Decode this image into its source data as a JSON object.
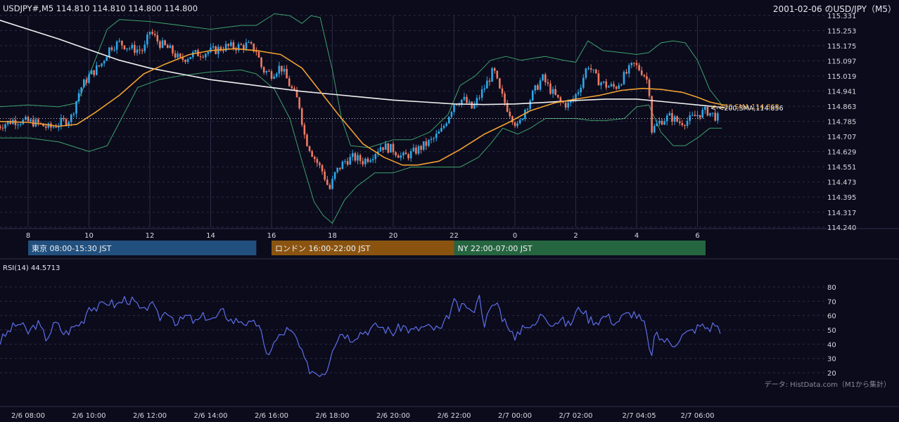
{
  "header": {
    "symbol_info": "USDJPY#,M5 114.810 114.810 114.800 114.800",
    "chart_title": "2001-02-06 のUSD/JPY（M5）"
  },
  "colors": {
    "background": "#0b0b1c",
    "grid": "#2a2c44",
    "candle_up": "#2ea8e8",
    "candle_down": "#f07a60",
    "sma20": "#f0a030",
    "sma200": "#f0f0f0",
    "bollinger": "#3fa06a",
    "rsi": "#5e6ee8",
    "session_tokyo": "#22507e",
    "session_london": "#8a5410",
    "session_ny": "#25653f"
  },
  "sessions": [
    {
      "label": "東京 08:00-15:30 JST",
      "start_hour": 8,
      "end_hour": 15.5
    },
    {
      "label": "ロンドン 16:00-22:00 JST",
      "start_hour": 16,
      "end_hour": 22
    },
    {
      "label": "NY 22:00-07:00 JST",
      "start_hour": 22,
      "end_hour": 31
    }
  ],
  "indicator_labels": {
    "sma20_tag": "<-<20,SMA,114.868",
    "sma200_tag": "<-<200,SMA,114.856"
  },
  "rsi": {
    "title": "RSI(14) 44.5713",
    "ticks": [
      20,
      30,
      40,
      50,
      60,
      70,
      80
    ]
  },
  "source_note": "データ: HistData.com（M1から集計）",
  "chart_data": {
    "type": "candlestick",
    "x_range_hours": [
      7.0,
      31.5
    ],
    "price_ylim": [
      114.24,
      115.331
    ],
    "price_ticks": [
      "115.331",
      "115.253",
      "115.175",
      "115.097",
      "115.019",
      "114.941",
      "114.863",
      "114.785",
      "114.707",
      "114.629",
      "114.551",
      "114.473",
      "114.395",
      "114.317",
      "114.240"
    ],
    "price_tick_values": [
      115.331,
      115.253,
      115.175,
      115.097,
      115.019,
      114.941,
      114.863,
      114.785,
      114.707,
      114.629,
      114.551,
      114.473,
      114.395,
      114.317,
      114.24
    ],
    "hour_ticks": [
      8,
      10,
      12,
      14,
      16,
      18,
      20,
      22,
      24,
      26,
      28,
      30
    ],
    "hour_tick_labels": [
      "8",
      "10",
      "12",
      "14",
      "16",
      "18",
      "20",
      "22",
      "0",
      "2",
      "4",
      "6"
    ],
    "bottom_ticks": [
      {
        "h": 8,
        "label": "2/6 08:00"
      },
      {
        "h": 10,
        "label": "2/6 10:00"
      },
      {
        "h": 12,
        "label": "2/6 12:00"
      },
      {
        "h": 14,
        "label": "2/6 14:00"
      },
      {
        "h": 16,
        "label": "2/6 16:00"
      },
      {
        "h": 18,
        "label": "2/6 18:00"
      },
      {
        "h": 20,
        "label": "2/6 20:00"
      },
      {
        "h": 22,
        "label": "2/6 22:00"
      },
      {
        "h": 24,
        "label": "2/7 00:00"
      },
      {
        "h": 26,
        "label": "2/7 02:00"
      },
      {
        "h": 28.0833,
        "label": "2/7 04:05"
      },
      {
        "h": 30,
        "label": "2/7 06:00"
      }
    ],
    "last_price": 114.8,
    "close_path": [
      [
        7.0,
        114.76
      ],
      [
        7.5,
        114.79
      ],
      [
        8.2,
        114.78
      ],
      [
        8.7,
        114.75
      ],
      [
        9.1,
        114.78
      ],
      [
        9.4,
        114.8
      ],
      [
        9.7,
        114.95
      ],
      [
        10.0,
        115.02
      ],
      [
        10.4,
        115.08
      ],
      [
        10.7,
        115.17
      ],
      [
        11.0,
        115.19
      ],
      [
        11.4,
        115.16
      ],
      [
        11.8,
        115.15
      ],
      [
        12.0,
        115.25
      ],
      [
        12.3,
        115.19
      ],
      [
        12.7,
        115.15
      ],
      [
        13.0,
        115.1
      ],
      [
        13.4,
        115.13
      ],
      [
        13.8,
        115.14
      ],
      [
        14.1,
        115.15
      ],
      [
        14.5,
        115.17
      ],
      [
        14.9,
        115.17
      ],
      [
        15.2,
        115.18
      ],
      [
        15.5,
        115.15
      ],
      [
        15.7,
        115.05
      ],
      [
        16.0,
        115.03
      ],
      [
        16.3,
        115.07
      ],
      [
        16.6,
        114.97
      ],
      [
        16.9,
        114.88
      ],
      [
        17.1,
        114.7
      ],
      [
        17.4,
        114.6
      ],
      [
        17.7,
        114.52
      ],
      [
        17.9,
        114.43
      ],
      [
        18.1,
        114.52
      ],
      [
        18.4,
        114.58
      ],
      [
        18.7,
        114.6
      ],
      [
        19.0,
        114.58
      ],
      [
        19.3,
        114.61
      ],
      [
        19.6,
        114.66
      ],
      [
        20.0,
        114.64
      ],
      [
        20.3,
        114.6
      ],
      [
        20.6,
        114.62
      ],
      [
        21.0,
        114.66
      ],
      [
        21.3,
        114.69
      ],
      [
        21.6,
        114.74
      ],
      [
        22.0,
        114.88
      ],
      [
        22.3,
        114.9
      ],
      [
        22.6,
        114.85
      ],
      [
        23.0,
        114.96
      ],
      [
        23.3,
        115.05
      ],
      [
        23.5,
        114.94
      ],
      [
        23.7,
        114.87
      ],
      [
        23.9,
        114.81
      ],
      [
        24.1,
        114.75
      ],
      [
        24.3,
        114.84
      ],
      [
        24.6,
        114.93
      ],
      [
        24.9,
        115.01
      ],
      [
        25.2,
        114.94
      ],
      [
        25.5,
        114.88
      ],
      [
        25.8,
        114.87
      ],
      [
        26.1,
        114.95
      ],
      [
        26.4,
        115.08
      ],
      [
        26.7,
        115.0
      ],
      [
        27.0,
        114.97
      ],
      [
        27.3,
        114.96
      ],
      [
        27.6,
        115.02
      ],
      [
        27.9,
        115.08
      ],
      [
        28.2,
        115.04
      ],
      [
        28.4,
        114.98
      ],
      [
        28.5,
        114.74
      ],
      [
        28.8,
        114.79
      ],
      [
        29.1,
        114.81
      ],
      [
        29.4,
        114.78
      ],
      [
        29.7,
        114.79
      ],
      [
        30.0,
        114.82
      ],
      [
        30.3,
        114.84
      ],
      [
        30.7,
        114.8
      ]
    ],
    "sma20_path": [
      [
        7.0,
        114.785
      ],
      [
        8.0,
        114.78
      ],
      [
        9.0,
        114.76
      ],
      [
        9.6,
        114.77
      ],
      [
        10.2,
        114.83
      ],
      [
        11.0,
        114.92
      ],
      [
        11.8,
        115.03
      ],
      [
        12.5,
        115.08
      ],
      [
        13.3,
        115.13
      ],
      [
        14.0,
        115.15
      ],
      [
        14.8,
        115.16
      ],
      [
        15.5,
        115.15
      ],
      [
        16.3,
        115.13
      ],
      [
        17.0,
        115.06
      ],
      [
        17.5,
        114.96
      ],
      [
        18.2,
        114.82
      ],
      [
        19.0,
        114.67
      ],
      [
        19.7,
        114.6
      ],
      [
        20.3,
        114.56
      ],
      [
        20.8,
        114.56
      ],
      [
        21.5,
        114.58
      ],
      [
        22.2,
        114.64
      ],
      [
        23.0,
        114.72
      ],
      [
        23.8,
        114.78
      ],
      [
        24.5,
        114.84
      ],
      [
        25.3,
        114.88
      ],
      [
        26.0,
        114.9
      ],
      [
        26.8,
        114.92
      ],
      [
        27.5,
        114.945
      ],
      [
        28.2,
        114.955
      ],
      [
        28.8,
        114.95
      ],
      [
        29.5,
        114.935
      ],
      [
        30.0,
        114.91
      ],
      [
        30.4,
        114.885
      ],
      [
        30.9,
        114.868
      ]
    ],
    "sma200_path": [
      [
        7.0,
        115.31
      ],
      [
        8.0,
        115.26
      ],
      [
        9.0,
        115.21
      ],
      [
        10.0,
        115.155
      ],
      [
        11.0,
        115.1
      ],
      [
        12.0,
        115.06
      ],
      [
        13.0,
        115.03
      ],
      [
        14.0,
        115.0
      ],
      [
        15.0,
        114.98
      ],
      [
        16.0,
        114.96
      ],
      [
        17.0,
        114.94
      ],
      [
        18.0,
        114.925
      ],
      [
        19.0,
        114.91
      ],
      [
        20.0,
        114.895
      ],
      [
        21.0,
        114.885
      ],
      [
        22.0,
        114.875
      ],
      [
        23.0,
        114.872
      ],
      [
        24.0,
        114.875
      ],
      [
        25.0,
        114.883
      ],
      [
        26.0,
        114.893
      ],
      [
        27.0,
        114.9
      ],
      [
        28.0,
        114.9
      ],
      [
        29.0,
        114.885
      ],
      [
        30.0,
        114.87
      ],
      [
        30.9,
        114.856
      ]
    ],
    "bollinger_upper": [
      [
        7.0,
        114.86
      ],
      [
        8.0,
        114.87
      ],
      [
        9.0,
        114.86
      ],
      [
        9.6,
        114.88
      ],
      [
        10.0,
        115.02
      ],
      [
        10.6,
        115.26
      ],
      [
        11.0,
        115.31
      ],
      [
        12.0,
        115.3
      ],
      [
        13.0,
        115.28
      ],
      [
        14.0,
        115.26
      ],
      [
        15.0,
        115.28
      ],
      [
        15.5,
        115.28
      ],
      [
        16.1,
        115.34
      ],
      [
        16.6,
        115.33
      ],
      [
        17.0,
        115.29
      ],
      [
        17.3,
        115.33
      ],
      [
        17.6,
        115.32
      ],
      [
        18.0,
        115.05
      ],
      [
        18.3,
        114.8
      ],
      [
        18.6,
        114.66
      ],
      [
        19.2,
        114.65
      ],
      [
        20.0,
        114.69
      ],
      [
        20.6,
        114.69
      ],
      [
        21.2,
        114.73
      ],
      [
        21.8,
        114.82
      ],
      [
        22.2,
        114.97
      ],
      [
        22.7,
        115.02
      ],
      [
        23.2,
        115.1
      ],
      [
        23.7,
        115.12
      ],
      [
        24.2,
        115.1
      ],
      [
        25.0,
        115.12
      ],
      [
        25.6,
        115.1
      ],
      [
        26.0,
        115.09
      ],
      [
        26.4,
        115.2
      ],
      [
        26.9,
        115.15
      ],
      [
        27.5,
        115.14
      ],
      [
        28.0,
        115.13
      ],
      [
        28.4,
        115.14
      ],
      [
        28.8,
        115.19
      ],
      [
        29.2,
        115.2
      ],
      [
        29.6,
        115.19
      ],
      [
        30.0,
        115.1
      ],
      [
        30.4,
        114.95
      ],
      [
        30.8,
        114.87
      ]
    ],
    "bollinger_lower": [
      [
        7.0,
        114.7
      ],
      [
        8.0,
        114.7
      ],
      [
        9.0,
        114.68
      ],
      [
        9.6,
        114.65
      ],
      [
        10.0,
        114.63
      ],
      [
        10.6,
        114.66
      ],
      [
        11.0,
        114.78
      ],
      [
        11.6,
        114.96
      ],
      [
        12.3,
        115.0
      ],
      [
        13.0,
        115.02
      ],
      [
        14.0,
        115.04
      ],
      [
        15.0,
        115.05
      ],
      [
        15.5,
        115.03
      ],
      [
        16.1,
        114.95
      ],
      [
        16.6,
        114.8
      ],
      [
        17.0,
        114.58
      ],
      [
        17.4,
        114.37
      ],
      [
        17.7,
        114.3
      ],
      [
        18.0,
        114.26
      ],
      [
        18.4,
        114.38
      ],
      [
        18.8,
        114.45
      ],
      [
        19.4,
        114.52
      ],
      [
        20.0,
        114.52
      ],
      [
        20.6,
        114.55
      ],
      [
        21.2,
        114.55
      ],
      [
        21.8,
        114.55
      ],
      [
        22.2,
        114.55
      ],
      [
        22.8,
        114.6
      ],
      [
        23.2,
        114.67
      ],
      [
        23.6,
        114.75
      ],
      [
        24.1,
        114.72
      ],
      [
        24.5,
        114.75
      ],
      [
        25.0,
        114.8
      ],
      [
        25.5,
        114.8
      ],
      [
        26.0,
        114.8
      ],
      [
        26.5,
        114.79
      ],
      [
        27.0,
        114.79
      ],
      [
        27.6,
        114.8
      ],
      [
        28.0,
        114.86
      ],
      [
        28.4,
        114.87
      ],
      [
        28.8,
        114.73
      ],
      [
        29.2,
        114.66
      ],
      [
        29.6,
        114.66
      ],
      [
        30.0,
        114.7
      ],
      [
        30.4,
        114.75
      ],
      [
        30.8,
        114.75
      ]
    ],
    "rsi_ylim": [
      15,
      82
    ],
    "rsi_path": [
      [
        7.0,
        40
      ],
      [
        7.4,
        50
      ],
      [
        7.7,
        55
      ],
      [
        8.0,
        48
      ],
      [
        8.3,
        55
      ],
      [
        8.6,
        44
      ],
      [
        8.9,
        55
      ],
      [
        9.2,
        47
      ],
      [
        9.5,
        52
      ],
      [
        9.8,
        56
      ],
      [
        10.0,
        67
      ],
      [
        10.3,
        65
      ],
      [
        10.6,
        70
      ],
      [
        10.9,
        67
      ],
      [
        11.2,
        72
      ],
      [
        11.5,
        69
      ],
      [
        11.8,
        61
      ],
      [
        12.0,
        70
      ],
      [
        12.3,
        58
      ],
      [
        12.6,
        64
      ],
      [
        12.9,
        54
      ],
      [
        13.2,
        60
      ],
      [
        13.5,
        55
      ],
      [
        13.8,
        60
      ],
      [
        14.1,
        57
      ],
      [
        14.4,
        63
      ],
      [
        14.7,
        56
      ],
      [
        15.0,
        57
      ],
      [
        15.3,
        53
      ],
      [
        15.6,
        55
      ],
      [
        15.8,
        31
      ],
      [
        16.0,
        38
      ],
      [
        16.2,
        44
      ],
      [
        16.5,
        50
      ],
      [
        16.8,
        45
      ],
      [
        17.0,
        33
      ],
      [
        17.2,
        23
      ],
      [
        17.5,
        20
      ],
      [
        17.8,
        21
      ],
      [
        18.0,
        38
      ],
      [
        18.3,
        49
      ],
      [
        18.6,
        44
      ],
      [
        18.9,
        48
      ],
      [
        19.2,
        50
      ],
      [
        19.5,
        53
      ],
      [
        19.8,
        50
      ],
      [
        20.0,
        48
      ],
      [
        20.3,
        53
      ],
      [
        20.6,
        49
      ],
      [
        21.0,
        52
      ],
      [
        21.3,
        51
      ],
      [
        21.6,
        50
      ],
      [
        22.0,
        69
      ],
      [
        22.2,
        64
      ],
      [
        22.4,
        68
      ],
      [
        22.6,
        60
      ],
      [
        22.8,
        76
      ],
      [
        23.0,
        55
      ],
      [
        23.2,
        64
      ],
      [
        23.4,
        70
      ],
      [
        23.6,
        58
      ],
      [
        23.8,
        54
      ],
      [
        24.0,
        42
      ],
      [
        24.3,
        55
      ],
      [
        24.6,
        51
      ],
      [
        24.9,
        62
      ],
      [
        25.2,
        55
      ],
      [
        25.5,
        57
      ],
      [
        25.8,
        53
      ],
      [
        26.0,
        62
      ],
      [
        26.2,
        66
      ],
      [
        26.4,
        58
      ],
      [
        26.7,
        56
      ],
      [
        27.0,
        60
      ],
      [
        27.3,
        55
      ],
      [
        27.6,
        60
      ],
      [
        27.9,
        62
      ],
      [
        28.1,
        58
      ],
      [
        28.3,
        52
      ],
      [
        28.45,
        29
      ],
      [
        28.6,
        46
      ],
      [
        28.9,
        43
      ],
      [
        29.2,
        40
      ],
      [
        29.5,
        46
      ],
      [
        29.8,
        49
      ],
      [
        30.1,
        53
      ],
      [
        30.4,
        51
      ],
      [
        30.6,
        55
      ],
      [
        30.8,
        45
      ]
    ]
  }
}
